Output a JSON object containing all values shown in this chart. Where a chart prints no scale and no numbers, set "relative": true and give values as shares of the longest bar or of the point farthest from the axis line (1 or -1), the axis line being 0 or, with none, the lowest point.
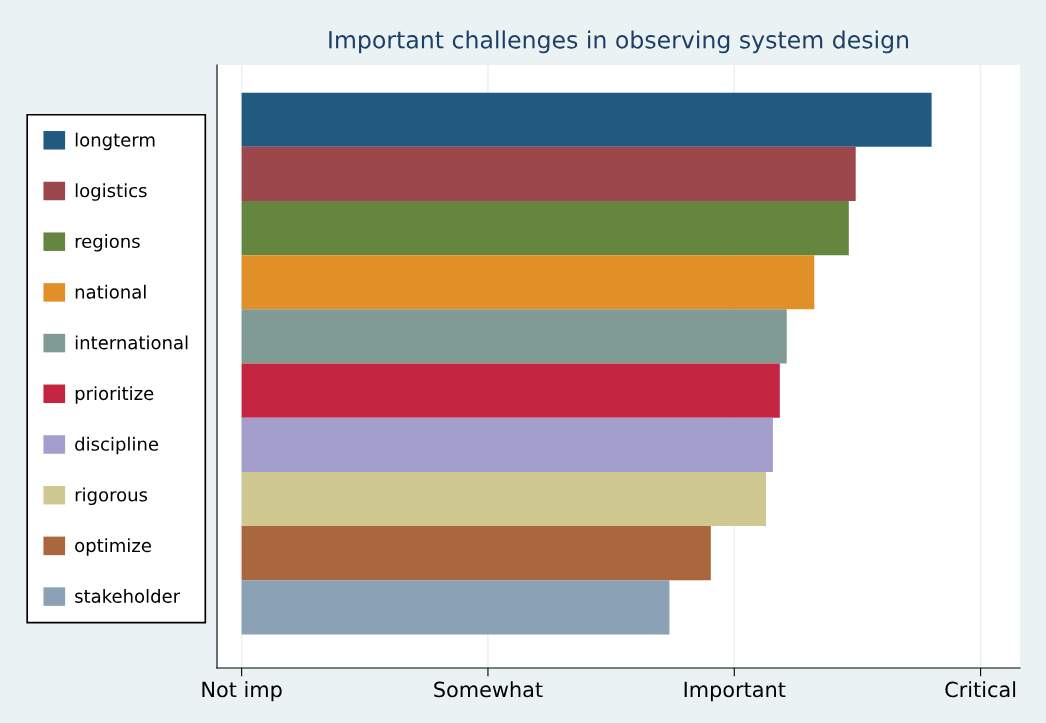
{
  "chart_data": {
    "type": "bar",
    "orientation": "horizontal",
    "relative": true,
    "title": "Important challenges in observing system design",
    "categories": [
      null
    ],
    "series": [
      {
        "name": "longterm",
        "color": "#215a80",
        "values": [
          1
        ]
      },
      {
        "name": "logistics",
        "color": "#9b474c",
        "values": [
          0.89
        ]
      },
      {
        "name": "regions",
        "color": "#65863f",
        "values": [
          0.88
        ]
      },
      {
        "name": "national",
        "color": "#e18f27",
        "values": [
          0.83
        ]
      },
      {
        "name": "international",
        "color": "#7f9b93",
        "values": [
          0.79
        ]
      },
      {
        "name": "prioritize",
        "color": "#c42641",
        "values": [
          0.78
        ]
      },
      {
        "name": "discipline",
        "color": "#a39ecc",
        "values": [
          0.77
        ]
      },
      {
        "name": "rigorous",
        "color": "#cfc891",
        "values": [
          0.76
        ]
      },
      {
        "name": "optimize",
        "color": "#aa663c",
        "values": [
          0.68
        ]
      },
      {
        "name": "stakeholder",
        "color": "#8ba1b5",
        "values": [
          0.62
        ]
      }
    ],
    "ref_lines": [
      {
        "axis": "x",
        "value": 0,
        "label": "Not imp",
        "color": "#eaf2f3"
      },
      {
        "axis": "x",
        "value": 0.357,
        "label": "Somewhat",
        "color": "#eaf2f3"
      },
      {
        "axis": "x",
        "value": 0.714,
        "label": "Important",
        "color": "#eaf2f3"
      },
      {
        "axis": "x",
        "value": 1.071,
        "label": "Critical",
        "color": "#eaf2f3"
      }
    ],
    "legend": "left",
    "tick_labels": "x"
  }
}
